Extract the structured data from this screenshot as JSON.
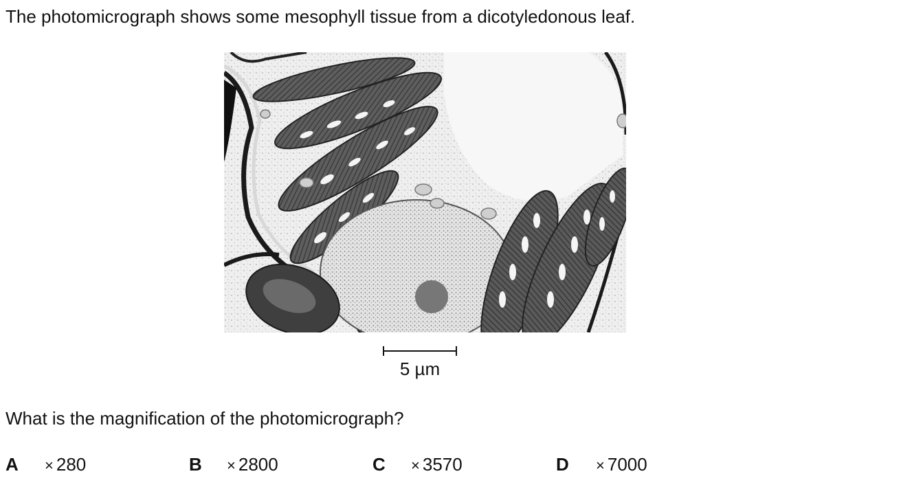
{
  "question": {
    "intro": "The photomicrograph shows some mesophyll tissue from a dicotyledonous leaf.",
    "scale_bar_label": "5 µm",
    "prompt": "What is the magnification of the photomicrograph?"
  },
  "options": [
    {
      "letter": "A",
      "times": "×",
      "value": "280"
    },
    {
      "letter": "B",
      "times": "×",
      "value": "2800"
    },
    {
      "letter": "C",
      "times": "×",
      "value": "3570"
    },
    {
      "letter": "D",
      "times": "×",
      "value": "7000"
    }
  ]
}
